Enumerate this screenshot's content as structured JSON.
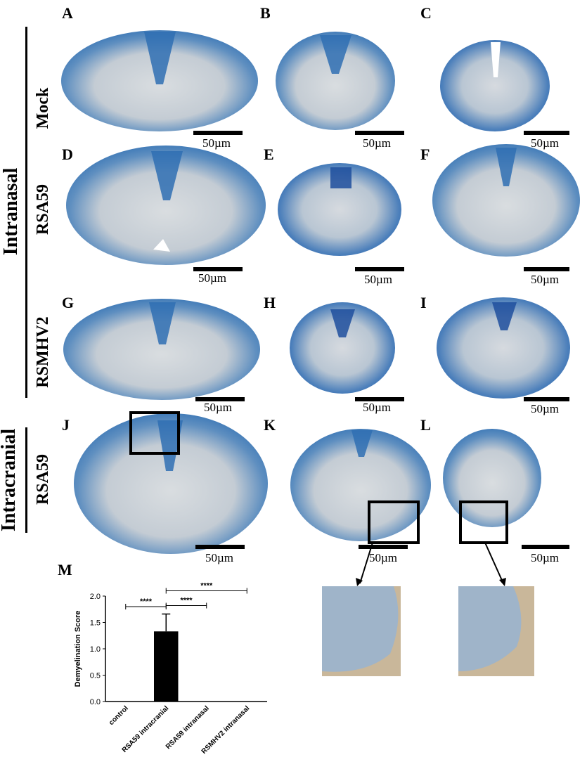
{
  "group_labels": {
    "intranasal": "Intranasal",
    "intracranial": "Intracranial"
  },
  "row_labels": {
    "mock": "Mock",
    "rsa59": "RSA59",
    "rsmhv2": "RSMHV2",
    "rsa59_ic": "RSA59"
  },
  "panels": [
    "A",
    "B",
    "C",
    "D",
    "E",
    "F",
    "G",
    "H",
    "I",
    "J",
    "K",
    "L"
  ],
  "chart_label": "M",
  "scale_label": "50µm",
  "colors": {
    "stain_blue": "#2f6fb3",
    "tissue_pale": "#cfd8df",
    "background": "#ffffff"
  },
  "chart_data": {
    "type": "bar",
    "categories": [
      "control",
      "RSA59 intracranial",
      "RSA59 intranasal",
      "RSMHV2 intranasal"
    ],
    "values": [
      0,
      1.33,
      0,
      0
    ],
    "error": [
      0,
      0.33,
      0,
      0
    ],
    "ylabel": "Demyelination Score",
    "xlabel": "",
    "ylim": [
      0,
      2.0
    ],
    "yticks": [
      "0.0",
      "0.5",
      "1.0",
      "1.5",
      "2.0"
    ],
    "significance": [
      {
        "from": 0,
        "to": 1,
        "label": "****"
      },
      {
        "from": 1,
        "to": 2,
        "label": "****"
      },
      {
        "from": 1,
        "to": 3,
        "label": "****"
      }
    ]
  }
}
